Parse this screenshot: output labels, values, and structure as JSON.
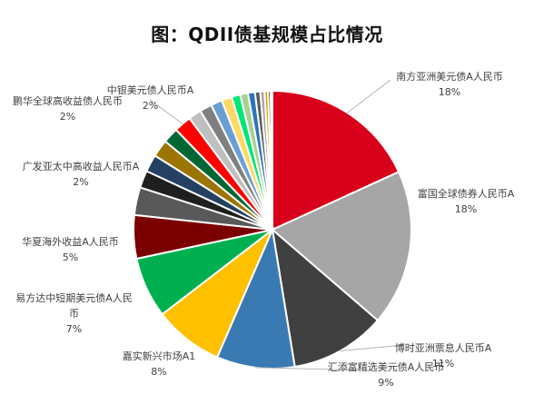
{
  "chart_data": {
    "type": "pie",
    "title": "图：QDII债基规模占比情况",
    "slices": [
      {
        "name": "南方亚洲美元债A人民币",
        "value": 18,
        "pct": "18%",
        "color": "#d9001b"
      },
      {
        "name": "富国全球债券人民币A",
        "value": 18,
        "pct": "18%",
        "color": "#a6a6a6"
      },
      {
        "name": "博时亚洲票息人民币A",
        "value": 11,
        "pct": "11%",
        "color": "#404040"
      },
      {
        "name": "汇添富精选美元债A人民币",
        "value": 9,
        "pct": "9%",
        "color": "#3a7ab3"
      },
      {
        "name": "嘉实新兴市场A1",
        "value": 8,
        "pct": "8%",
        "color": "#ffc000"
      },
      {
        "name": "易方达中短期美元债A人民币",
        "value": 7,
        "pct": "7%",
        "color": "#00b050"
      },
      {
        "name": "华夏海外收益A人民币",
        "value": 5,
        "pct": "5%",
        "color": "#7b0000"
      },
      {
        "name": "",
        "value": 3.2,
        "pct": "",
        "color": "#595959"
      },
      {
        "name": "广发亚太中高收益人民币A",
        "value": 2,
        "pct": "2%",
        "color": "#1f1f1f"
      },
      {
        "name": "",
        "value": 2.0,
        "pct": "",
        "color": "#244062"
      },
      {
        "name": "鹏华全球高收益债人民币",
        "value": 2,
        "pct": "2%",
        "color": "#9c7400"
      },
      {
        "name": "",
        "value": 1.8,
        "pct": "",
        "color": "#006633"
      },
      {
        "name": "中银美元债人民币A",
        "value": 2,
        "pct": "2%",
        "color": "#ff0000"
      },
      {
        "name": "",
        "value": 1.5,
        "pct": "",
        "color": "#bfbfbf"
      },
      {
        "name": "",
        "value": 1.4,
        "pct": "",
        "color": "#808080"
      },
      {
        "name": "",
        "value": 1.3,
        "pct": "",
        "color": "#6a9fd4"
      },
      {
        "name": "",
        "value": 1.2,
        "pct": "",
        "color": "#ffd966"
      },
      {
        "name": "",
        "value": 1.0,
        "pct": "",
        "color": "#00e676"
      },
      {
        "name": "",
        "value": 0.9,
        "pct": "",
        "color": "#a9d18e"
      },
      {
        "name": "",
        "value": 0.8,
        "pct": "",
        "color": "#2e75b6"
      },
      {
        "name": "",
        "value": 0.6,
        "pct": "",
        "color": "#595959"
      },
      {
        "name": "",
        "value": 0.5,
        "pct": "",
        "color": "#a6a6a6"
      },
      {
        "name": "",
        "value": 0.4,
        "pct": "",
        "color": "#d9a400"
      },
      {
        "name": "",
        "value": 0.3,
        "pct": "",
        "color": "#404040"
      },
      {
        "name": "",
        "value": 0.2,
        "pct": "",
        "color": "#ffc000"
      }
    ]
  }
}
